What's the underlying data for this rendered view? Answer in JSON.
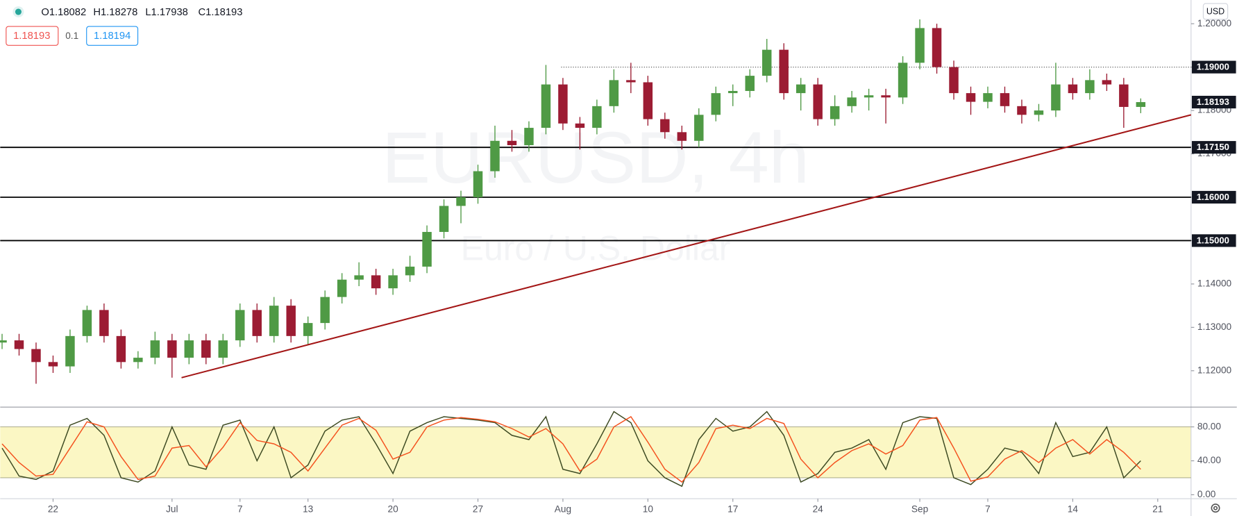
{
  "chart_data": [
    {
      "type": "candlestick",
      "watermark": "EURUSD, 4h",
      "watermark_subtitle": "Euro / U.S. Dollar",
      "ohlc_legend": [
        "O1.18082",
        "H1.18278",
        "L1.17938",
        "C1.18193"
      ],
      "bid": "1.18193",
      "spread": "0.1",
      "ask": "1.18194",
      "currency": "USD",
      "up_color": "#4f9a45",
      "down_color": "#9c1c33",
      "x": [
        -3,
        -2,
        -1,
        0,
        1,
        2,
        3,
        4,
        5,
        6,
        7,
        8,
        9,
        10,
        11,
        12,
        13,
        14,
        15,
        16,
        17,
        18,
        19,
        20,
        21,
        22,
        23,
        24,
        25,
        26,
        27,
        28,
        29,
        30,
        31,
        32,
        33,
        34,
        35,
        36,
        37,
        38,
        39,
        40,
        41,
        42,
        43,
        44,
        45,
        46,
        47,
        48,
        49,
        50,
        51,
        52,
        53,
        54,
        55,
        56,
        57,
        58,
        59,
        60,
        61,
        62,
        63,
        64
      ],
      "open": [
        1.1265,
        1.127,
        1.125,
        1.122,
        1.121,
        1.128,
        1.134,
        1.128,
        1.122,
        1.123,
        1.127,
        1.123,
        1.127,
        1.123,
        1.127,
        1.134,
        1.128,
        1.135,
        1.128,
        1.131,
        1.137,
        1.141,
        1.142,
        1.139,
        1.142,
        1.144,
        1.152,
        1.158,
        1.16,
        1.166,
        1.173,
        1.172,
        1.176,
        1.186,
        1.177,
        1.176,
        1.181,
        1.187,
        1.1865,
        1.178,
        1.175,
        1.173,
        1.179,
        1.184,
        1.1845,
        1.188,
        1.194,
        1.184,
        1.186,
        1.178,
        1.181,
        1.183,
        1.1835,
        1.183,
        1.191,
        1.199,
        1.19,
        1.184,
        1.182,
        1.184,
        1.181,
        1.179,
        1.18,
        1.186,
        1.184,
        1.187,
        1.186,
        1.18082
      ],
      "high": [
        1.1285,
        1.1285,
        1.1265,
        1.1235,
        1.1295,
        1.135,
        1.1355,
        1.1295,
        1.1245,
        1.129,
        1.1285,
        1.1285,
        1.1285,
        1.1285,
        1.1355,
        1.1355,
        1.137,
        1.1365,
        1.1325,
        1.1385,
        1.1425,
        1.145,
        1.1435,
        1.1435,
        1.1465,
        1.1535,
        1.1595,
        1.1615,
        1.1675,
        1.1765,
        1.1755,
        1.1775,
        1.1905,
        1.1875,
        1.1785,
        1.1825,
        1.1895,
        1.191,
        1.188,
        1.1795,
        1.1765,
        1.1805,
        1.1855,
        1.186,
        1.1895,
        1.1965,
        1.1955,
        1.1875,
        1.1875,
        1.1835,
        1.1845,
        1.185,
        1.185,
        1.1925,
        1.201,
        1.2,
        1.1915,
        1.1855,
        1.1855,
        1.1855,
        1.1825,
        1.1815,
        1.191,
        1.1875,
        1.1895,
        1.1885,
        1.1875,
        1.18278
      ],
      "low": [
        1.125,
        1.1235,
        1.117,
        1.1195,
        1.1195,
        1.1265,
        1.1265,
        1.1205,
        1.1205,
        1.1215,
        1.1184,
        1.1215,
        1.1215,
        1.1215,
        1.1255,
        1.1265,
        1.1265,
        1.1265,
        1.126,
        1.1295,
        1.1355,
        1.1395,
        1.1375,
        1.1375,
        1.1405,
        1.1425,
        1.1505,
        1.154,
        1.1585,
        1.1645,
        1.1705,
        1.1705,
        1.1745,
        1.1755,
        1.171,
        1.1745,
        1.1795,
        1.184,
        1.1765,
        1.1735,
        1.171,
        1.1715,
        1.1775,
        1.181,
        1.183,
        1.1865,
        1.1825,
        1.18,
        1.1765,
        1.1765,
        1.1795,
        1.18,
        1.177,
        1.1815,
        1.1895,
        1.1885,
        1.1825,
        1.179,
        1.1805,
        1.1795,
        1.177,
        1.1775,
        1.1785,
        1.1825,
        1.1825,
        1.1845,
        1.176,
        1.17938
      ],
      "close": [
        1.127,
        1.125,
        1.122,
        1.121,
        1.128,
        1.134,
        1.128,
        1.122,
        1.123,
        1.127,
        1.123,
        1.127,
        1.123,
        1.127,
        1.134,
        1.128,
        1.135,
        1.128,
        1.131,
        1.137,
        1.141,
        1.142,
        1.139,
        1.142,
        1.144,
        1.152,
        1.158,
        1.16,
        1.166,
        1.173,
        1.172,
        1.176,
        1.186,
        1.177,
        1.176,
        1.181,
        1.187,
        1.1865,
        1.178,
        1.175,
        1.173,
        1.179,
        1.184,
        1.1845,
        1.188,
        1.194,
        1.184,
        1.186,
        1.178,
        1.181,
        1.183,
        1.1835,
        1.183,
        1.191,
        1.199,
        1.19,
        1.184,
        1.182,
        1.184,
        1.181,
        1.179,
        1.18,
        1.186,
        1.184,
        1.187,
        1.186,
        1.18082,
        1.18193
      ],
      "xlim": [
        -3.11,
        66.96
      ],
      "ylim": [
        1.11161,
        1.20547
      ],
      "yticks": [
        {
          "value": 1.12,
          "label": "1.12000"
        },
        {
          "value": 1.13,
          "label": "1.13000"
        },
        {
          "value": 1.14,
          "label": "1.14000"
        },
        {
          "value": 1.15,
          "label": "1.15000"
        },
        {
          "value": 1.16,
          "label": "1.16000"
        },
        {
          "value": 1.17,
          "label": "1.17000"
        },
        {
          "value": 1.18,
          "label": "1.18000"
        },
        {
          "value": 1.19,
          "label": "1.19000"
        },
        {
          "value": 1.2,
          "label": "1.20000"
        }
      ],
      "levels": [
        {
          "value": 1.1715,
          "label": "1.17150"
        },
        {
          "value": 1.16,
          "label": "1.16000"
        },
        {
          "value": 1.15,
          "label": "1.15000"
        }
      ],
      "dotted_level": {
        "value": 1.19,
        "label": "1.19000",
        "start_x": 29.9
      },
      "last_price": {
        "value": 1.18193,
        "label": "1.18193"
      },
      "trendline": {
        "x": [
          7.56,
          66.96
        ],
        "y": [
          1.1184,
          1.179
        ],
        "color": "#a31515"
      }
    },
    {
      "type": "line",
      "x": [
        -3,
        -2,
        -1,
        0,
        1,
        2,
        3,
        4,
        5,
        6,
        7,
        8,
        9,
        10,
        11,
        12,
        13,
        14,
        15,
        16,
        17,
        18,
        19,
        20,
        21,
        22,
        23,
        24,
        25,
        26,
        27,
        28,
        29,
        30,
        31,
        32,
        33,
        34,
        35,
        36,
        37,
        38,
        39,
        40,
        41,
        42,
        43,
        44,
        45,
        46,
        47,
        48,
        49,
        50,
        51,
        52,
        53,
        54,
        55,
        56,
        57,
        58,
        59,
        60,
        61,
        62,
        63,
        64
      ],
      "series": [
        {
          "color": "#3d4a22",
          "values": [
            55,
            22,
            18,
            28,
            82,
            90,
            70,
            20,
            15,
            28,
            80,
            35,
            30,
            82,
            88,
            40,
            80,
            20,
            35,
            75,
            88,
            92,
            60,
            25,
            75,
            85,
            92,
            90,
            88,
            85,
            70,
            65,
            92,
            30,
            25,
            60,
            98,
            85,
            40,
            20,
            10,
            65,
            90,
            75,
            80,
            98,
            70,
            15,
            25,
            50,
            55,
            65,
            30,
            85,
            92,
            90,
            20,
            12,
            30,
            55,
            50,
            25,
            85,
            45,
            50,
            80,
            20,
            40
          ]
        },
        {
          "color": "#f4511e",
          "values": [
            60,
            38,
            22,
            24,
            55,
            86,
            80,
            45,
            18,
            22,
            55,
            58,
            33,
            56,
            85,
            64,
            60,
            50,
            28,
            55,
            82,
            90,
            76,
            42,
            50,
            80,
            88,
            91,
            89,
            86,
            78,
            68,
            78,
            60,
            28,
            42,
            80,
            92,
            62,
            30,
            15,
            38,
            78,
            82,
            78,
            90,
            84,
            42,
            20,
            38,
            52,
            60,
            48,
            58,
            88,
            91,
            55,
            16,
            21,
            42,
            52,
            38,
            55,
            65,
            48,
            65,
            50,
            30
          ]
        }
      ],
      "band": [
        20,
        80
      ],
      "xlim": [
        -3.11,
        66.96
      ],
      "ylim": [
        -4.6,
        103.3
      ],
      "yticks": [
        {
          "value": 0,
          "label": "0.00"
        },
        {
          "value": 40,
          "label": "40.00"
        },
        {
          "value": 80,
          "label": "80.00"
        }
      ],
      "xticks": [
        {
          "value": 0,
          "label": "22"
        },
        {
          "value": 7,
          "label": "Jul"
        },
        {
          "value": 11,
          "label": "7"
        },
        {
          "value": 15,
          "label": "13"
        },
        {
          "value": 20,
          "label": "20"
        },
        {
          "value": 25,
          "label": "27"
        },
        {
          "value": 30,
          "label": "Aug"
        },
        {
          "value": 35,
          "label": "10"
        },
        {
          "value": 40,
          "label": "17"
        },
        {
          "value": 45,
          "label": "24"
        },
        {
          "value": 51,
          "label": "Sep"
        },
        {
          "value": 55,
          "label": "7"
        },
        {
          "value": 60,
          "label": "14"
        },
        {
          "value": 65,
          "label": "21"
        }
      ]
    }
  ]
}
